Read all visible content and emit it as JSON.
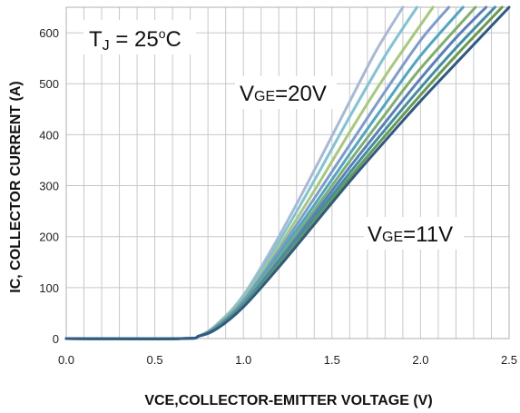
{
  "chart_data": {
    "type": "line",
    "xlabel": "VCE,COLLECTOR-EMITTER VOLTAGE (V)",
    "ylabel": "IC, COLLECTOR CURRENT (A)",
    "xlim": [
      0,
      2.5
    ],
    "ylim": [
      0,
      650
    ],
    "xticks": [
      "0.0",
      "0.5",
      "1.0",
      "1.5",
      "2.0",
      "2.5"
    ],
    "yticks": [
      "0",
      "100",
      "200",
      "300",
      "400",
      "500",
      "600"
    ],
    "xtick_values": [
      0,
      0.5,
      1.0,
      1.5,
      2.0,
      2.5
    ],
    "ytick_values": [
      0,
      100,
      200,
      300,
      400,
      500,
      600
    ],
    "grid": true,
    "annotations": {
      "temp": {
        "main": "T",
        "sub": "J",
        "rest": " = 25",
        "sup": "o",
        "unit": "C"
      },
      "vge_high": {
        "main": "V",
        "sub": "GE",
        "rest": "=20V"
      },
      "vge_low": {
        "main": "V",
        "sub": "GE",
        "rest": "=11V"
      }
    },
    "series": [
      {
        "color": "#a8b8d8",
        "x": [
          0,
          0.65,
          0.75,
          0.85,
          1.0,
          1.2,
          1.4,
          1.6,
          1.75,
          1.9
        ],
        "y": [
          0,
          0,
          5,
          28,
          85,
          200,
          330,
          465,
          565,
          650
        ]
      },
      {
        "color": "#7fc4d6",
        "x": [
          0,
          0.65,
          0.75,
          0.85,
          1.0,
          1.2,
          1.4,
          1.6,
          1.8,
          1.98
        ],
        "y": [
          0,
          0,
          5,
          27,
          82,
          190,
          310,
          435,
          555,
          650
        ]
      },
      {
        "color": "#a6c97a",
        "x": [
          0,
          0.65,
          0.75,
          0.85,
          1.0,
          1.2,
          1.4,
          1.6,
          1.8,
          2.07
        ],
        "y": [
          0,
          0,
          5,
          26,
          78,
          180,
          290,
          405,
          515,
          650
        ]
      },
      {
        "color": "#7e9bd1",
        "x": [
          0,
          0.65,
          0.75,
          0.85,
          1.0,
          1.2,
          1.4,
          1.6,
          1.8,
          2.0,
          2.16
        ],
        "y": [
          0,
          0,
          5,
          25,
          75,
          172,
          275,
          380,
          485,
          585,
          650
        ]
      },
      {
        "color": "#4da6c8",
        "x": [
          0,
          0.65,
          0.75,
          0.85,
          1.0,
          1.2,
          1.4,
          1.6,
          1.8,
          2.0,
          2.24
        ],
        "y": [
          0,
          0,
          5,
          24,
          72,
          165,
          262,
          362,
          460,
          555,
          650
        ]
      },
      {
        "color": "#7fb069",
        "x": [
          0,
          0.65,
          0.75,
          0.85,
          1.0,
          1.2,
          1.4,
          1.6,
          1.8,
          2.0,
          2.31
        ],
        "y": [
          0,
          0,
          5,
          23,
          70,
          158,
          252,
          348,
          440,
          530,
          650
        ]
      },
      {
        "color": "#5a7fc0",
        "x": [
          0,
          0.65,
          0.75,
          0.85,
          1.0,
          1.2,
          1.4,
          1.6,
          1.8,
          2.0,
          2.2,
          2.37
        ],
        "y": [
          0,
          0,
          5,
          22,
          68,
          153,
          244,
          336,
          424,
          510,
          590,
          650
        ]
      },
      {
        "color": "#3d8fa8",
        "x": [
          0,
          0.65,
          0.75,
          0.85,
          1.0,
          1.2,
          1.4,
          1.6,
          1.8,
          2.0,
          2.2,
          2.42
        ],
        "y": [
          0,
          0,
          5,
          21,
          66,
          148,
          236,
          325,
          410,
          492,
          570,
          650
        ]
      },
      {
        "color": "#6b9a4a",
        "x": [
          0,
          0.65,
          0.75,
          0.85,
          1.0,
          1.2,
          1.4,
          1.6,
          1.8,
          2.0,
          2.2,
          2.46
        ],
        "y": [
          0,
          0,
          5,
          20,
          64,
          144,
          230,
          316,
          398,
          478,
          555,
          650
        ]
      },
      {
        "color": "#2e5a8a",
        "x": [
          0,
          0.65,
          0.75,
          0.85,
          1.0,
          1.2,
          1.4,
          1.6,
          1.8,
          2.0,
          2.2,
          2.5
        ],
        "y": [
          0,
          0,
          5,
          19,
          62,
          140,
          224,
          308,
          388,
          466,
          540,
          650
        ]
      }
    ]
  }
}
